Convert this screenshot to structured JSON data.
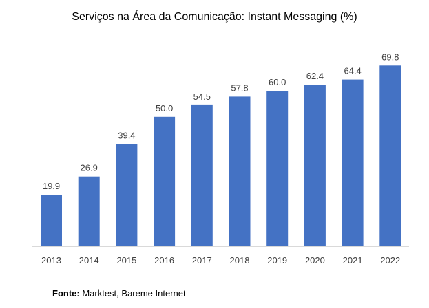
{
  "chart_data": {
    "type": "bar",
    "title": "Serviços na Área da Comunicação: Instant Messaging (%)",
    "xlabel": "",
    "ylabel": "",
    "categories": [
      "2013",
      "2014",
      "2015",
      "2016",
      "2017",
      "2018",
      "2019",
      "2020",
      "2021",
      "2022"
    ],
    "values": [
      19.9,
      26.9,
      39.4,
      50.0,
      54.5,
      57.8,
      60.0,
      62.4,
      64.4,
      69.8
    ],
    "value_labels": [
      "19.9",
      "26.9",
      "39.4",
      "50.0",
      "54.5",
      "57.8",
      "60.0",
      "62.4",
      "64.4",
      "69.8"
    ],
    "ylim": [
      0,
      70
    ],
    "grid": false,
    "legend": "none",
    "bar_color": "#4472C4",
    "axis_color": "#D9D9D9"
  },
  "source": {
    "prefix": "Fonte:",
    "text": " Marktest, Bareme Internet"
  }
}
